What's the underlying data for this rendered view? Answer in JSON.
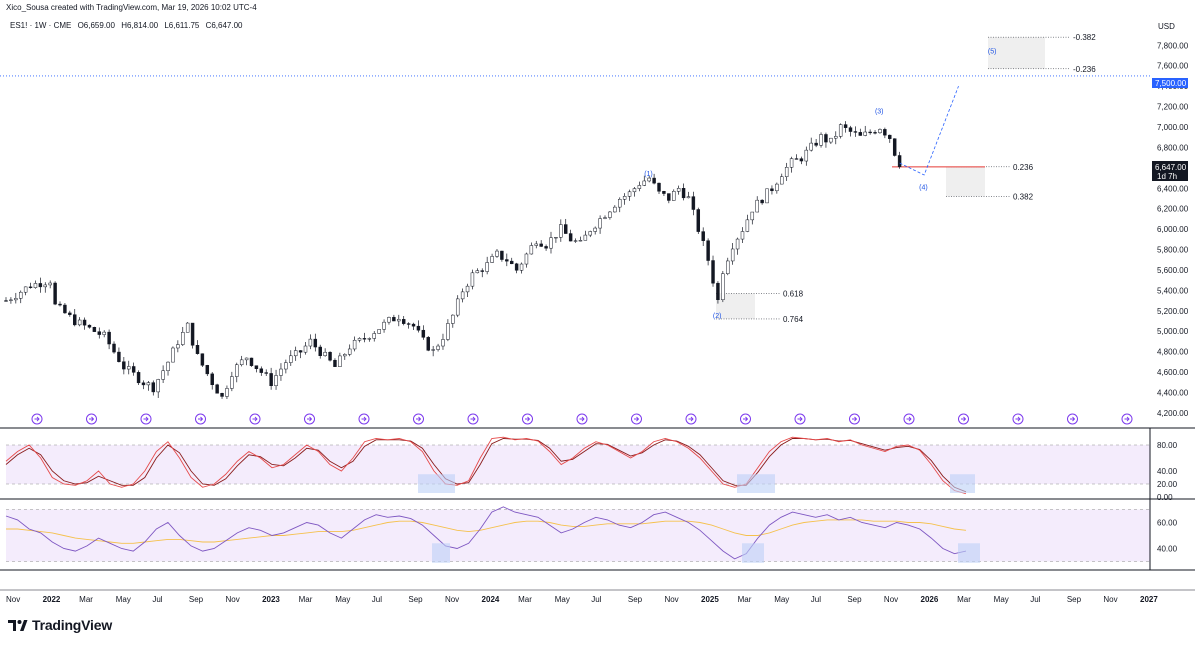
{
  "header": {
    "credit": "Xico_Sousa created with TradingView.com, Mar 19, 2026 10:02 UTC-4"
  },
  "symbol": {
    "name": "ES1! · 1W · CME",
    "open": "O6,659.00",
    "high": "H6,814.00",
    "low": "L6,611.75",
    "close": "C6,647.00"
  },
  "currency": "USD",
  "price_tags": {
    "target": "7,500.00",
    "last": "6,647.00",
    "countdown": "1d 7h"
  },
  "brand": {
    "name": "TradingView"
  },
  "colors": {
    "bull": "#ffffff",
    "bear": "#131722",
    "accent_blue": "#2962ff",
    "stoch_k": "#e64a4a",
    "stoch_d": "#8a1c1c",
    "rsi_line": "#7e57c2",
    "rsi_ma": "#f5c14d",
    "fib_line": "#e53935"
  },
  "chart_data": {
    "type": "candlestick",
    "x_ticks": [
      "Nov",
      "2022",
      "Mar",
      "May",
      "Jul",
      "Sep",
      "Nov",
      "2023",
      "Mar",
      "May",
      "Jul",
      "Sep",
      "Nov",
      "2024",
      "Mar",
      "May",
      "Jul",
      "Sep",
      "Nov",
      "2025",
      "Mar",
      "May",
      "Jul",
      "Sep",
      "Nov",
      "2026",
      "Mar",
      "May",
      "Jul",
      "Sep",
      "Nov",
      "2027"
    ],
    "y_ticks": [
      "7,800.00",
      "7,600.00",
      "7,400.00",
      "7,200.00",
      "7,000.00",
      "6,800.00",
      "6,600.00",
      "6,400.00",
      "6,200.00",
      "6,000.00",
      "5,800.00",
      "5,600.00",
      "5,400.00",
      "5,200.00",
      "5,000.00",
      "4,800.00",
      "4,600.00",
      "4,400.00",
      "4,200.00"
    ],
    "ylim": [
      4150,
      7950
    ],
    "close_path": [
      [
        0,
        5300
      ],
      [
        5,
        5450
      ],
      [
        9,
        5500
      ],
      [
        10,
        5250
      ],
      [
        14,
        5100
      ],
      [
        18,
        5000
      ],
      [
        20,
        4950
      ],
      [
        24,
        4650
      ],
      [
        28,
        4500
      ],
      [
        30,
        4450
      ],
      [
        33,
        4700
      ],
      [
        35,
        4900
      ],
      [
        37,
        5050
      ],
      [
        39,
        4750
      ],
      [
        42,
        4500
      ],
      [
        44,
        4350
      ],
      [
        46,
        4600
      ],
      [
        49,
        4750
      ],
      [
        51,
        4650
      ],
      [
        54,
        4500
      ],
      [
        57,
        4700
      ],
      [
        60,
        4800
      ],
      [
        62,
        4900
      ],
      [
        65,
        4750
      ],
      [
        67,
        4650
      ],
      [
        70,
        4850
      ],
      [
        72,
        4900
      ],
      [
        75,
        5000
      ],
      [
        78,
        5100
      ],
      [
        80,
        5150
      ],
      [
        83,
        5050
      ],
      [
        85,
        4900
      ],
      [
        87,
        4800
      ],
      [
        89,
        4950
      ],
      [
        91,
        5150
      ],
      [
        93,
        5400
      ],
      [
        95,
        5550
      ],
      [
        98,
        5650
      ],
      [
        100,
        5750
      ],
      [
        102,
        5700
      ],
      [
        104,
        5600
      ],
      [
        106,
        5750
      ],
      [
        108,
        5900
      ],
      [
        110,
        5850
      ],
      [
        113,
        6000
      ],
      [
        115,
        5900
      ],
      [
        117,
        5850
      ],
      [
        119,
        6000
      ],
      [
        121,
        6100
      ],
      [
        123,
        6200
      ],
      [
        125,
        6300
      ],
      [
        127,
        6350
      ],
      [
        129,
        6450
      ],
      [
        131,
        6500
      ],
      [
        133,
        6350
      ],
      [
        135,
        6300
      ],
      [
        137,
        6400
      ],
      [
        139,
        6300
      ],
      [
        141,
        6000
      ],
      [
        143,
        5700
      ],
      [
        144,
        5500
      ],
      [
        145,
        5300
      ],
      [
        146,
        5600
      ],
      [
        148,
        5850
      ],
      [
        150,
        6000
      ],
      [
        152,
        6200
      ],
      [
        154,
        6300
      ],
      [
        156,
        6400
      ],
      [
        158,
        6550
      ],
      [
        160,
        6650
      ],
      [
        162,
        6700
      ],
      [
        164,
        6800
      ],
      [
        166,
        6900
      ],
      [
        168,
        6850
      ],
      [
        170,
        7000
      ],
      [
        172,
        6950
      ],
      [
        174,
        6900
      ],
      [
        176,
        6950
      ],
      [
        178,
        7000
      ],
      [
        180,
        6900
      ],
      [
        181,
        6750
      ],
      [
        182,
        6647
      ]
    ],
    "total_weeks": 233,
    "annotations": [
      {
        "label": "(1)",
        "x": 131,
        "y": 6520
      },
      {
        "label": "(2)",
        "x": 145,
        "y": 5130
      },
      {
        "label": "(3)",
        "x": 178,
        "y": 7130
      },
      {
        "label": "(4)",
        "x": 187,
        "y": 6390
      },
      {
        "label": "(5)",
        "x": 201,
        "y": 7720
      }
    ],
    "fib_levels": [
      {
        "label": "0.618",
        "value": 5370
      },
      {
        "label": "0.764",
        "value": 5120
      },
      {
        "label": "0.236",
        "value": 6610
      },
      {
        "label": "0.382",
        "value": 6320
      },
      {
        "label": "-0.236",
        "value": 7570
      },
      {
        "label": "-0.382",
        "value": 7880
      }
    ],
    "target_level": 7500,
    "stoch": {
      "yticks": [
        "80.00",
        "40.00",
        "20.00",
        "0.00"
      ],
      "ylim": [
        0,
        100
      ],
      "k": [
        55,
        70,
        80,
        60,
        30,
        20,
        18,
        25,
        40,
        20,
        15,
        20,
        40,
        70,
        85,
        60,
        30,
        15,
        20,
        35,
        55,
        70,
        60,
        45,
        50,
        65,
        80,
        70,
        50,
        40,
        60,
        85,
        90,
        88,
        90,
        85,
        70,
        40,
        20,
        18,
        25,
        60,
        90,
        92,
        88,
        90,
        86,
        70,
        50,
        60,
        75,
        85,
        80,
        70,
        60,
        70,
        85,
        90,
        85,
        75,
        60,
        40,
        20,
        15,
        20,
        45,
        70,
        85,
        92,
        90,
        88,
        90,
        85,
        88,
        80,
        75,
        70,
        78,
        80,
        72,
        50,
        25,
        10,
        5
      ],
      "d": [
        50,
        65,
        75,
        65,
        40,
        25,
        20,
        22,
        32,
        25,
        18,
        18,
        30,
        60,
        80,
        68,
        40,
        20,
        18,
        28,
        48,
        65,
        62,
        50,
        48,
        60,
        75,
        72,
        55,
        45,
        55,
        78,
        88,
        88,
        88,
        86,
        75,
        50,
        28,
        20,
        22,
        50,
        82,
        90,
        89,
        89,
        87,
        75,
        55,
        58,
        70,
        82,
        81,
        72,
        63,
        68,
        80,
        88,
        86,
        78,
        65,
        45,
        25,
        18,
        18,
        38,
        62,
        80,
        90,
        90,
        88,
        89,
        86,
        87,
        82,
        77,
        72,
        76,
        78,
        73,
        56,
        32,
        15,
        8
      ]
    },
    "rsi": {
      "yticks": [
        "60.00",
        "40.00"
      ],
      "ylim": [
        25,
        75
      ],
      "line": [
        65,
        62,
        55,
        52,
        45,
        40,
        38,
        42,
        48,
        44,
        40,
        38,
        45,
        55,
        60,
        50,
        42,
        38,
        40,
        46,
        52,
        56,
        54,
        50,
        52,
        56,
        60,
        58,
        52,
        48,
        55,
        62,
        66,
        64,
        65,
        63,
        58,
        50,
        42,
        40,
        44,
        55,
        68,
        72,
        68,
        66,
        64,
        58,
        52,
        55,
        60,
        64,
        62,
        58,
        56,
        60,
        66,
        68,
        64,
        60,
        54,
        46,
        38,
        32,
        36,
        48,
        58,
        64,
        68,
        66,
        64,
        66,
        62,
        64,
        60,
        58,
        56,
        60,
        58,
        55,
        48,
        40,
        36,
        38
      ],
      "ma": [
        55,
        55,
        54,
        53,
        52,
        50,
        48,
        47,
        46,
        45,
        44,
        44,
        45,
        46,
        47,
        47,
        46,
        45,
        45,
        46,
        47,
        48,
        49,
        50,
        50,
        51,
        52,
        53,
        53,
        53,
        54,
        56,
        58,
        60,
        61,
        61,
        60,
        58,
        56,
        54,
        53,
        54,
        56,
        58,
        60,
        61,
        61,
        60,
        58,
        57,
        57,
        58,
        59,
        59,
        59,
        59,
        60,
        61,
        61,
        61,
        60,
        58,
        55,
        52,
        50,
        50,
        52,
        55,
        58,
        60,
        61,
        62,
        62,
        62,
        62,
        61,
        61,
        61,
        60,
        60,
        59,
        57,
        55,
        54
      ]
    }
  }
}
